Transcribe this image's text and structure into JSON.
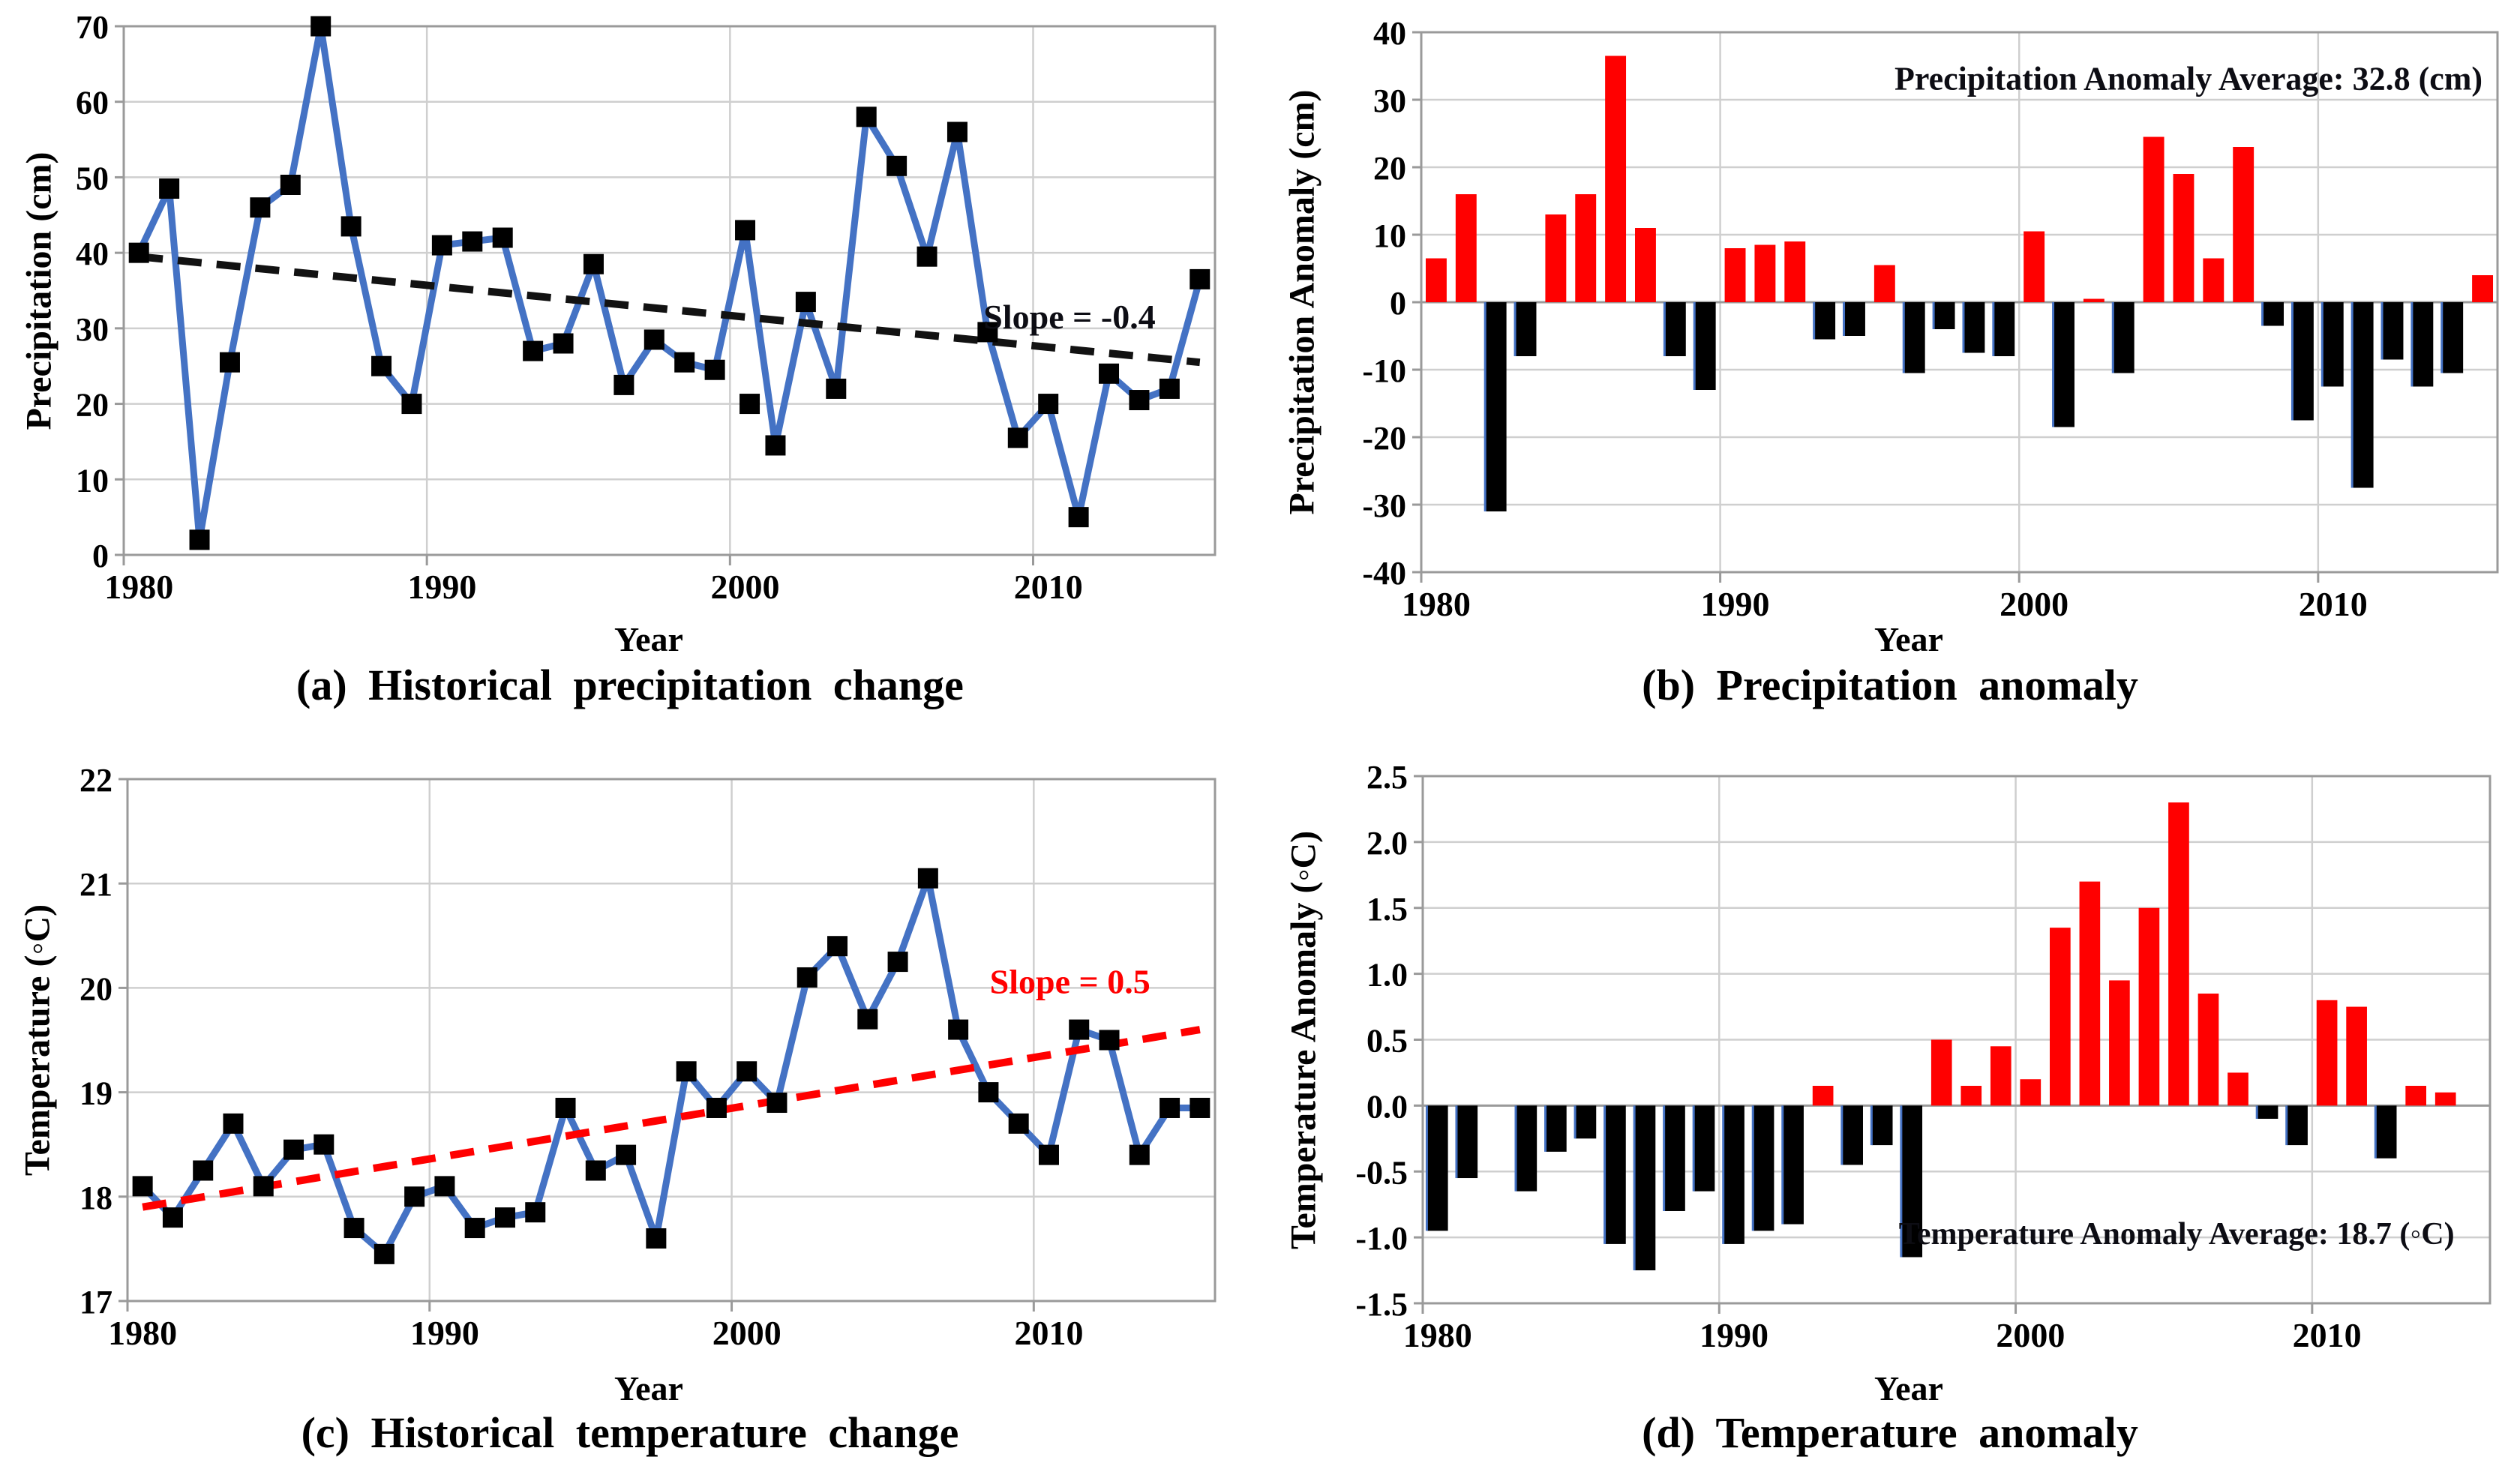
{
  "chart_data": [
    {
      "id": "a",
      "type": "line",
      "caption": "(a) Historical precipitation change",
      "xlabel": "Year",
      "ylabel": "Precipitation (cm)",
      "years": [
        1980,
        1981,
        1982,
        1983,
        1984,
        1985,
        1986,
        1987,
        1988,
        1989,
        1990,
        1991,
        1992,
        1993,
        1994,
        1995,
        1996,
        1997,
        1998,
        1999,
        2000,
        2001,
        2002,
        2003,
        2004,
        2005,
        2006,
        2007,
        2008,
        2009,
        2010,
        2011,
        2012,
        2013,
        2014,
        2015
      ],
      "values": [
        40,
        48.5,
        2,
        25.5,
        46,
        49,
        70,
        43.5,
        25,
        20,
        41,
        41.5,
        42,
        27,
        28,
        38.5,
        22.5,
        28.5,
        25.5,
        24.5,
        43,
        14.5,
        33.5,
        22,
        58,
        51.5,
        39.5,
        56,
        29.5,
        15.5,
        20,
        5,
        24,
        20.5,
        22,
        36.5
      ],
      "ylim": [
        0,
        70
      ],
      "yticks": [
        0,
        10,
        20,
        30,
        40,
        50,
        60,
        70
      ],
      "ytick_labels": [
        "0",
        "10",
        "20",
        "30",
        "40",
        "50",
        "60",
        "70"
      ],
      "xticks": [
        1980,
        1990,
        2000,
        2010
      ],
      "line_color": "#4472C4",
      "marker_color": "#000000",
      "trend": {
        "start": 39.5,
        "end": 25.5,
        "color": "#121212"
      },
      "stray_points": [
        {
          "year": 2000,
          "value": 20
        }
      ],
      "annotations": [
        {
          "text": "Slope = -0.4",
          "year": 2010.7,
          "value": 30,
          "anchor": "middle",
          "color": "#0d0d14",
          "size": 46
        }
      ]
    },
    {
      "id": "b",
      "type": "bar",
      "caption": "(b) Precipitation anomaly",
      "xlabel": "Year",
      "ylabel": "Precipitation Anomaly (cm)",
      "years": [
        1980,
        1981,
        1982,
        1983,
        1984,
        1985,
        1986,
        1987,
        1988,
        1989,
        1990,
        1991,
        1992,
        1993,
        1994,
        1995,
        1996,
        1997,
        1998,
        1999,
        2000,
        2001,
        2002,
        2003,
        2004,
        2005,
        2006,
        2007,
        2008,
        2009,
        2010,
        2011,
        2012,
        2013,
        2014,
        2015
      ],
      "values": [
        6.5,
        16,
        -31,
        -8,
        13,
        16,
        36.5,
        11,
        -8,
        -13,
        8,
        8.5,
        9,
        -5.5,
        -5,
        5.5,
        -10.5,
        -4,
        -7.5,
        -8,
        10.5,
        -18.5,
        0.5,
        -10.5,
        24.5,
        19,
        6.5,
        23,
        -3.5,
        -17.5,
        -12.5,
        -27.5,
        -8.5,
        -12.5,
        -10.5,
        4
      ],
      "ylim": [
        -40,
        40
      ],
      "yticks": [
        -40,
        -30,
        -20,
        -10,
        0,
        10,
        20,
        30,
        40
      ],
      "ytick_labels": [
        "-40",
        "-30",
        "-20",
        "-10",
        "0",
        "10",
        "20",
        "30",
        "40"
      ],
      "xticks": [
        1980,
        1990,
        2000,
        2010
      ],
      "pos_color": "#FF0000",
      "neg_color": "#000000",
      "annotations": [
        {
          "text": "Precipitation Anomaly Average: 32.8 (cm)",
          "year": 2015,
          "value": 31.5,
          "anchor": "end",
          "color": "#0d0d14",
          "size": 44
        }
      ]
    },
    {
      "id": "c",
      "type": "line",
      "caption": "(c) Historical temperature change",
      "xlabel": "Year",
      "ylabel": "Temperature (◦C)",
      "years": [
        1980,
        1981,
        1982,
        1983,
        1984,
        1985,
        1986,
        1987,
        1988,
        1989,
        1990,
        1991,
        1992,
        1993,
        1994,
        1995,
        1996,
        1997,
        1998,
        1999,
        2000,
        2001,
        2002,
        2003,
        2004,
        2005,
        2006,
        2007,
        2008,
        2009,
        2010,
        2011,
        2012,
        2013,
        2014,
        2015
      ],
      "values": [
        18.1,
        17.8,
        18.25,
        18.7,
        18.1,
        18.45,
        18.5,
        17.7,
        17.45,
        18,
        18.1,
        17.7,
        17.8,
        17.85,
        18.85,
        18.25,
        18.4,
        17.6,
        19.2,
        18.85,
        19.2,
        18.9,
        20.1,
        20.4,
        19.7,
        20.25,
        21.05,
        19.6,
        19,
        18.7,
        18.4,
        19.6,
        19.5,
        18.4,
        18.85,
        18.85
      ],
      "ylim": [
        17,
        22
      ],
      "yticks": [
        17,
        18,
        19,
        20,
        21,
        22
      ],
      "ytick_labels": [
        "17",
        "18",
        "19",
        "20",
        "21",
        "22"
      ],
      "xticks": [
        1980,
        1990,
        2000,
        2010
      ],
      "line_color": "#4472C4",
      "marker_color": "#000000",
      "trend": {
        "start": 17.9,
        "end": 19.6,
        "color": "#FF0000"
      },
      "stray_points": [],
      "annotations": [
        {
          "text": "Slope = 0.5",
          "year": 2010.7,
          "value": 19.95,
          "anchor": "middle",
          "color": "#FF0000",
          "size": 46
        }
      ]
    },
    {
      "id": "d",
      "type": "bar",
      "caption": "(d) Temperature anomaly",
      "xlabel": "Year",
      "ylabel": "Temperature Anomaly (◦C)",
      "years": [
        1980,
        1981,
        1982,
        1983,
        1984,
        1985,
        1986,
        1987,
        1988,
        1989,
        1990,
        1991,
        1992,
        1993,
        1994,
        1995,
        1996,
        1997,
        1998,
        1999,
        2000,
        2001,
        2002,
        2003,
        2004,
        2005,
        2006,
        2007,
        2008,
        2009,
        2010,
        2011,
        2012,
        2013,
        2014,
        2015
      ],
      "values": [
        -0.95,
        -0.55,
        0,
        -0.65,
        -0.35,
        -0.25,
        -1.05,
        -1.25,
        -0.8,
        -0.65,
        -1.05,
        -0.95,
        -0.9,
        0.15,
        -0.45,
        -0.3,
        -1.15,
        0.5,
        0.15,
        0.45,
        0.2,
        1.35,
        1.7,
        0.95,
        1.5,
        2.3,
        0.85,
        0.25,
        -0.1,
        -0.3,
        0.8,
        0.75,
        -0.4,
        0.15,
        0.1,
        0
      ],
      "ylim": [
        -1.5,
        2.5
      ],
      "yticks": [
        -1.5,
        -1,
        -0.5,
        0,
        0.5,
        1,
        1.5,
        2,
        2.5
      ],
      "ytick_labels": [
        "-1.5",
        "-1.0",
        "-0.5",
        "0.0",
        "0.5",
        "1.0",
        "1.5",
        "2.0",
        "2.5"
      ],
      "xticks": [
        1980,
        1990,
        2000,
        2010
      ],
      "pos_color": "#FF0000",
      "neg_color": "#000000",
      "annotations": [
        {
          "text": "Temperature Anomaly Average: 18.7 (◦C)",
          "year": 2014.3,
          "value": -1.05,
          "anchor": "end",
          "color": "#0d0d14",
          "size": 42
        }
      ]
    }
  ],
  "style": {
    "grid_color": "#cfcfcf",
    "frame_color": "#9a9a9a",
    "bar_edge_blue": "#4472C4"
  }
}
